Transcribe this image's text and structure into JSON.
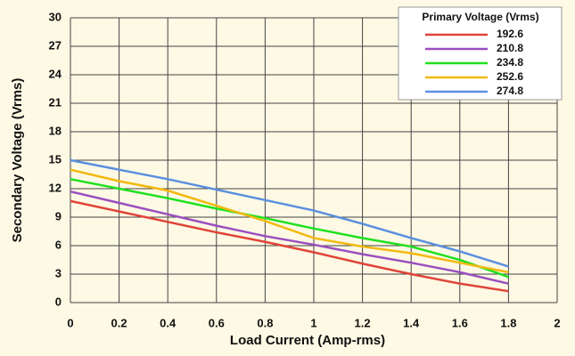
{
  "chart_data": {
    "type": "line",
    "x_label": "Load Current (Amp-rms)",
    "y_label": "Secondary Voltage (Vrms)",
    "legend_title": "Primary Voltage (Vrms)",
    "legend_position": "upper right",
    "grid": true,
    "x": [
      0,
      0.2,
      0.4,
      0.6,
      0.8,
      1,
      1.2,
      1.4,
      1.6,
      1.8
    ],
    "xlim": [
      0,
      2
    ],
    "xticks": [
      0,
      0.2,
      0.4,
      0.6,
      0.8,
      1,
      1.2,
      1.4,
      1.6,
      1.8,
      2
    ],
    "ylim": [
      0,
      30
    ],
    "yticks": [
      0,
      3,
      6,
      9,
      12,
      15,
      18,
      21,
      24,
      27,
      30
    ],
    "series": [
      {
        "name": "192.6",
        "color": "#e0443a",
        "values": [
          10.7,
          9.6,
          8.5,
          7.4,
          6.4,
          5.3,
          4.1,
          3.0,
          2.0,
          1.2
        ]
      },
      {
        "name": "210.8",
        "color": "#9b4fc0",
        "values": [
          11.7,
          10.5,
          9.3,
          8.1,
          7.0,
          6.1,
          5.1,
          4.2,
          3.2,
          2.0
        ]
      },
      {
        "name": "234.8",
        "color": "#1fe01f",
        "values": [
          13.0,
          12.0,
          11.0,
          9.9,
          8.9,
          7.8,
          6.8,
          5.9,
          4.5,
          2.7
        ]
      },
      {
        "name": "252.6",
        "color": "#f2b90f",
        "values": [
          14.0,
          12.8,
          11.8,
          10.2,
          8.6,
          6.8,
          5.9,
          5.2,
          4.2,
          3.2
        ]
      },
      {
        "name": "274.8",
        "color": "#5b8fe0",
        "values": [
          15.0,
          14.0,
          13.0,
          11.9,
          10.8,
          9.7,
          8.3,
          6.8,
          5.4,
          3.8
        ]
      }
    ]
  }
}
